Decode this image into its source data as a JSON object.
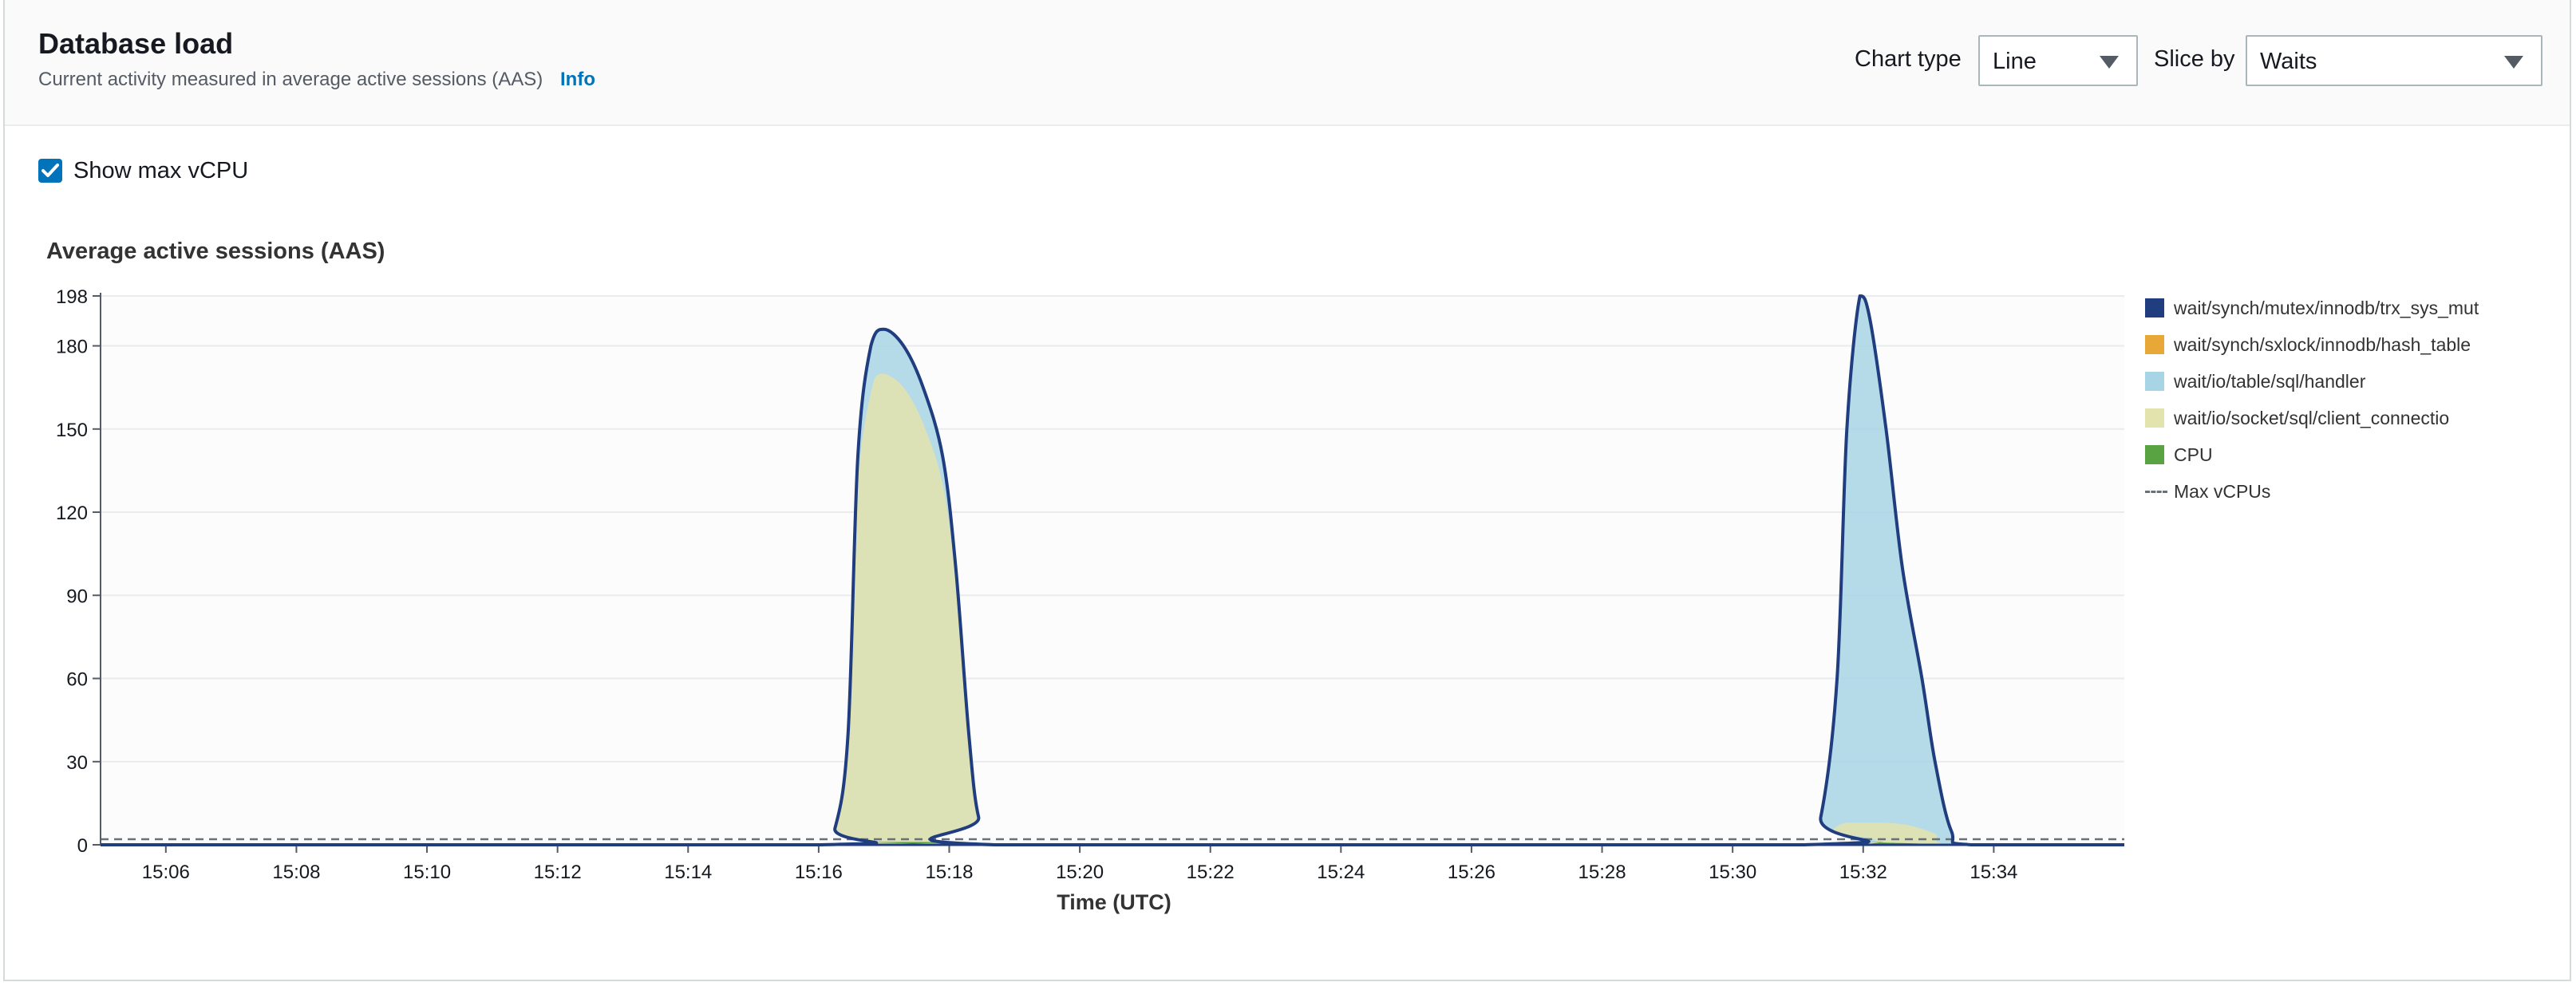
{
  "header": {
    "title": "Database load",
    "description": "Current activity measured in average active sessions (AAS)",
    "info_link": "Info",
    "chart_type_label": "Chart type",
    "chart_type_value": "Line",
    "slice_by_label": "Slice by",
    "slice_by_value": "Waits"
  },
  "show_max_vcpu": {
    "label": "Show max vCPU",
    "checked": true
  },
  "chart_data": {
    "type": "area",
    "title": "Average active sessions (AAS)",
    "xlabel": "Time (UTC)",
    "ylabel": "",
    "ylim": [
      0,
      198
    ],
    "yticks": [
      0,
      30,
      60,
      90,
      120,
      150,
      180,
      198
    ],
    "xlim": [
      "15:05",
      "15:36"
    ],
    "xtick_labels": [
      "15:06",
      "15:08",
      "15:10",
      "15:12",
      "15:14",
      "15:16",
      "15:18",
      "15:20",
      "15:22",
      "15:24",
      "15:26",
      "15:28",
      "15:30",
      "15:32",
      "15:34"
    ],
    "grid": true,
    "legend_position": "right",
    "series": [
      {
        "name": "wait/synch/mutex/innodb/trx_sys_mut",
        "color": "#1f3d7f",
        "style": "line",
        "points": [
          [
            "15:05",
            0
          ],
          [
            "15:16",
            0
          ],
          [
            "15:16.25",
            6
          ],
          [
            "15:16.45",
            40
          ],
          [
            "15:16.6",
            140
          ],
          [
            "15:16.8",
            180
          ],
          [
            "15:17",
            186
          ],
          [
            "15:17.3",
            180
          ],
          [
            "15:17.6",
            165
          ],
          [
            "15:17.9",
            140
          ],
          [
            "15:18.1",
            100
          ],
          [
            "15:18.3",
            40
          ],
          [
            "15:18.45",
            10
          ],
          [
            "15:18.7",
            0
          ],
          [
            "15:31.1",
            0
          ],
          [
            "15:31.35",
            10
          ],
          [
            "15:31.6",
            60
          ],
          [
            "15:31.75",
            150
          ],
          [
            "15:31.95",
            198
          ],
          [
            "15:32.1",
            190
          ],
          [
            "15:32.35",
            150
          ],
          [
            "15:32.6",
            100
          ],
          [
            "15:32.9",
            60
          ],
          [
            "15:33.1",
            30
          ],
          [
            "15:33.35",
            5
          ],
          [
            "15:33.65",
            0
          ],
          [
            "15:36",
            0
          ]
        ]
      },
      {
        "name": "wait/synch/sxlock/innodb/hash_table",
        "color": "#e8a838",
        "style": "area",
        "points": [
          [
            "15:05",
            0
          ],
          [
            "15:36",
            0
          ]
        ]
      },
      {
        "name": "wait/io/table/sql/handler",
        "color": "#a8d5e5",
        "style": "area",
        "points": [
          [
            "15:05",
            0
          ],
          [
            "15:16",
            0
          ],
          [
            "15:16.25",
            6
          ],
          [
            "15:16.45",
            40
          ],
          [
            "15:16.6",
            140
          ],
          [
            "15:16.8",
            180
          ],
          [
            "15:17",
            186
          ],
          [
            "15:17.3",
            180
          ],
          [
            "15:17.6",
            165
          ],
          [
            "15:17.9",
            140
          ],
          [
            "15:18.1",
            100
          ],
          [
            "15:18.3",
            40
          ],
          [
            "15:18.45",
            10
          ],
          [
            "15:18.7",
            0
          ],
          [
            "15:31.1",
            0
          ],
          [
            "15:31.35",
            10
          ],
          [
            "15:31.6",
            60
          ],
          [
            "15:31.75",
            150
          ],
          [
            "15:31.95",
            198
          ],
          [
            "15:32.1",
            190
          ],
          [
            "15:32.35",
            150
          ],
          [
            "15:32.6",
            100
          ],
          [
            "15:32.9",
            60
          ],
          [
            "15:33.1",
            30
          ],
          [
            "15:33.35",
            5
          ],
          [
            "15:33.65",
            0
          ],
          [
            "15:36",
            0
          ]
        ]
      },
      {
        "name": "wait/io/socket/sql/client_connectio",
        "color": "#e3e3ad",
        "style": "area",
        "points": [
          [
            "15:05",
            0
          ],
          [
            "15:16",
            0
          ],
          [
            "15:16.25",
            6
          ],
          [
            "15:16.45",
            38
          ],
          [
            "15:16.6",
            130
          ],
          [
            "15:16.85",
            168
          ],
          [
            "15:17",
            170
          ],
          [
            "15:17.3",
            165
          ],
          [
            "15:17.6",
            152
          ],
          [
            "15:17.9",
            130
          ],
          [
            "15:18.1",
            95
          ],
          [
            "15:18.3",
            38
          ],
          [
            "15:18.45",
            10
          ],
          [
            "15:18.7",
            0
          ],
          [
            "15:31.2",
            0
          ],
          [
            "15:31.5",
            5
          ],
          [
            "15:31.75",
            8
          ],
          [
            "15:32.3",
            8
          ],
          [
            "15:32.7",
            7
          ],
          [
            "15:33.1",
            4
          ],
          [
            "15:33.4",
            0
          ],
          [
            "15:36",
            0
          ]
        ]
      },
      {
        "name": "CPU",
        "color": "#5aa342",
        "style": "area",
        "points": [
          [
            "15:05",
            0
          ],
          [
            "15:16.6",
            0
          ],
          [
            "15:16.8",
            1
          ],
          [
            "15:18.2",
            1
          ],
          [
            "15:18.4",
            0
          ],
          [
            "15:31.9",
            0
          ],
          [
            "15:32",
            1
          ],
          [
            "15:32.3",
            1
          ],
          [
            "15:32.4",
            0
          ],
          [
            "15:36",
            0
          ]
        ]
      },
      {
        "name": "Max vCPUs",
        "color": "#687078",
        "style": "dashed",
        "points": [
          [
            "15:05",
            2
          ],
          [
            "15:36",
            2
          ]
        ]
      }
    ]
  }
}
